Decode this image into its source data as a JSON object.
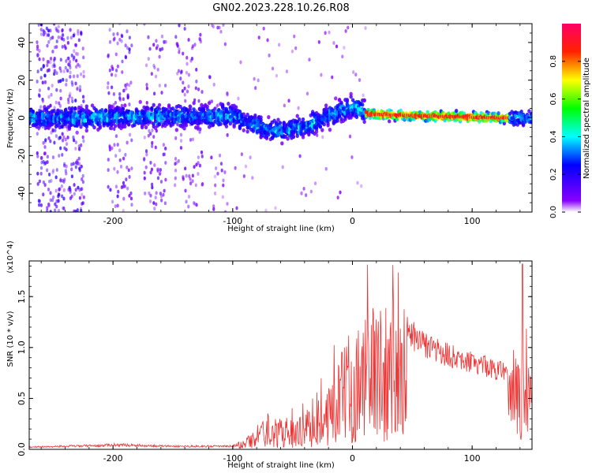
{
  "figure": {
    "title": "GN02.2023.228.10.26.R08"
  },
  "chart_data": [
    {
      "type": "heatmap",
      "xlabel": "Height of straight line (km)",
      "ylabel": "Frequency (Hz)",
      "xlim": [
        -270,
        150
      ],
      "ylim": [
        -50,
        50
      ],
      "x_ticks": [
        -200,
        -100,
        0,
        100
      ],
      "y_ticks": [
        -40,
        -20,
        0,
        20,
        40
      ],
      "colorbar": {
        "label": "Normalized spectral amplitude",
        "range": [
          0,
          1
        ],
        "ticks": [
          "0.0",
          "0.2",
          "0.4",
          "0.6",
          "0.8"
        ],
        "colormap": "gist_rainbow_r"
      },
      "center_track": [
        {
          "x": -230,
          "y": 0
        },
        {
          "x": -150,
          "y": 1
        },
        {
          "x": -100,
          "y": 1
        },
        {
          "x": -85,
          "y": -3
        },
        {
          "x": -65,
          "y": -7
        },
        {
          "x": -40,
          "y": -5
        },
        {
          "x": -20,
          "y": 1
        },
        {
          "x": 0,
          "y": 6
        },
        {
          "x": 15,
          "y": 2
        },
        {
          "x": 60,
          "y": 1
        },
        {
          "x": 120,
          "y": 0
        },
        {
          "x": 150,
          "y": 0
        }
      ]
    },
    {
      "type": "line",
      "xlabel": "Height of straight line (km)",
      "ylabel": "SNR (10 * v/v)",
      "y_scale_label": "(x10^4)",
      "xlim": [
        -270,
        150
      ],
      "ylim": [
        0,
        1.85
      ],
      "x_ticks": [
        -200,
        -100,
        0,
        100
      ],
      "y_ticks": [
        "0.0",
        "0.5",
        "1.0",
        "1.5"
      ],
      "color": "#ee3333",
      "envelope": [
        {
          "x": -270,
          "y": 0.03
        },
        {
          "x": -210,
          "y": 0.05
        },
        {
          "x": -200,
          "y": 0.06
        },
        {
          "x": -150,
          "y": 0.04
        },
        {
          "x": -100,
          "y": 0.04
        },
        {
          "x": -90,
          "y": 0.1
        },
        {
          "x": -75,
          "y": 0.28
        },
        {
          "x": -60,
          "y": 0.3
        },
        {
          "x": -45,
          "y": 0.3
        },
        {
          "x": -30,
          "y": 0.45
        },
        {
          "x": -15,
          "y": 0.8
        },
        {
          "x": 0,
          "y": 1.1
        },
        {
          "x": 15,
          "y": 1.35
        },
        {
          "x": 25,
          "y": 1.45
        },
        {
          "x": 40,
          "y": 1.25
        },
        {
          "x": 60,
          "y": 1.05
        },
        {
          "x": 80,
          "y": 0.95
        },
        {
          "x": 100,
          "y": 0.88
        },
        {
          "x": 120,
          "y": 0.8
        },
        {
          "x": 135,
          "y": 0.75
        },
        {
          "x": 145,
          "y": 1.0
        },
        {
          "x": 150,
          "y": 0.8
        }
      ],
      "peak": {
        "x": 142,
        "y": 1.82
      }
    }
  ]
}
